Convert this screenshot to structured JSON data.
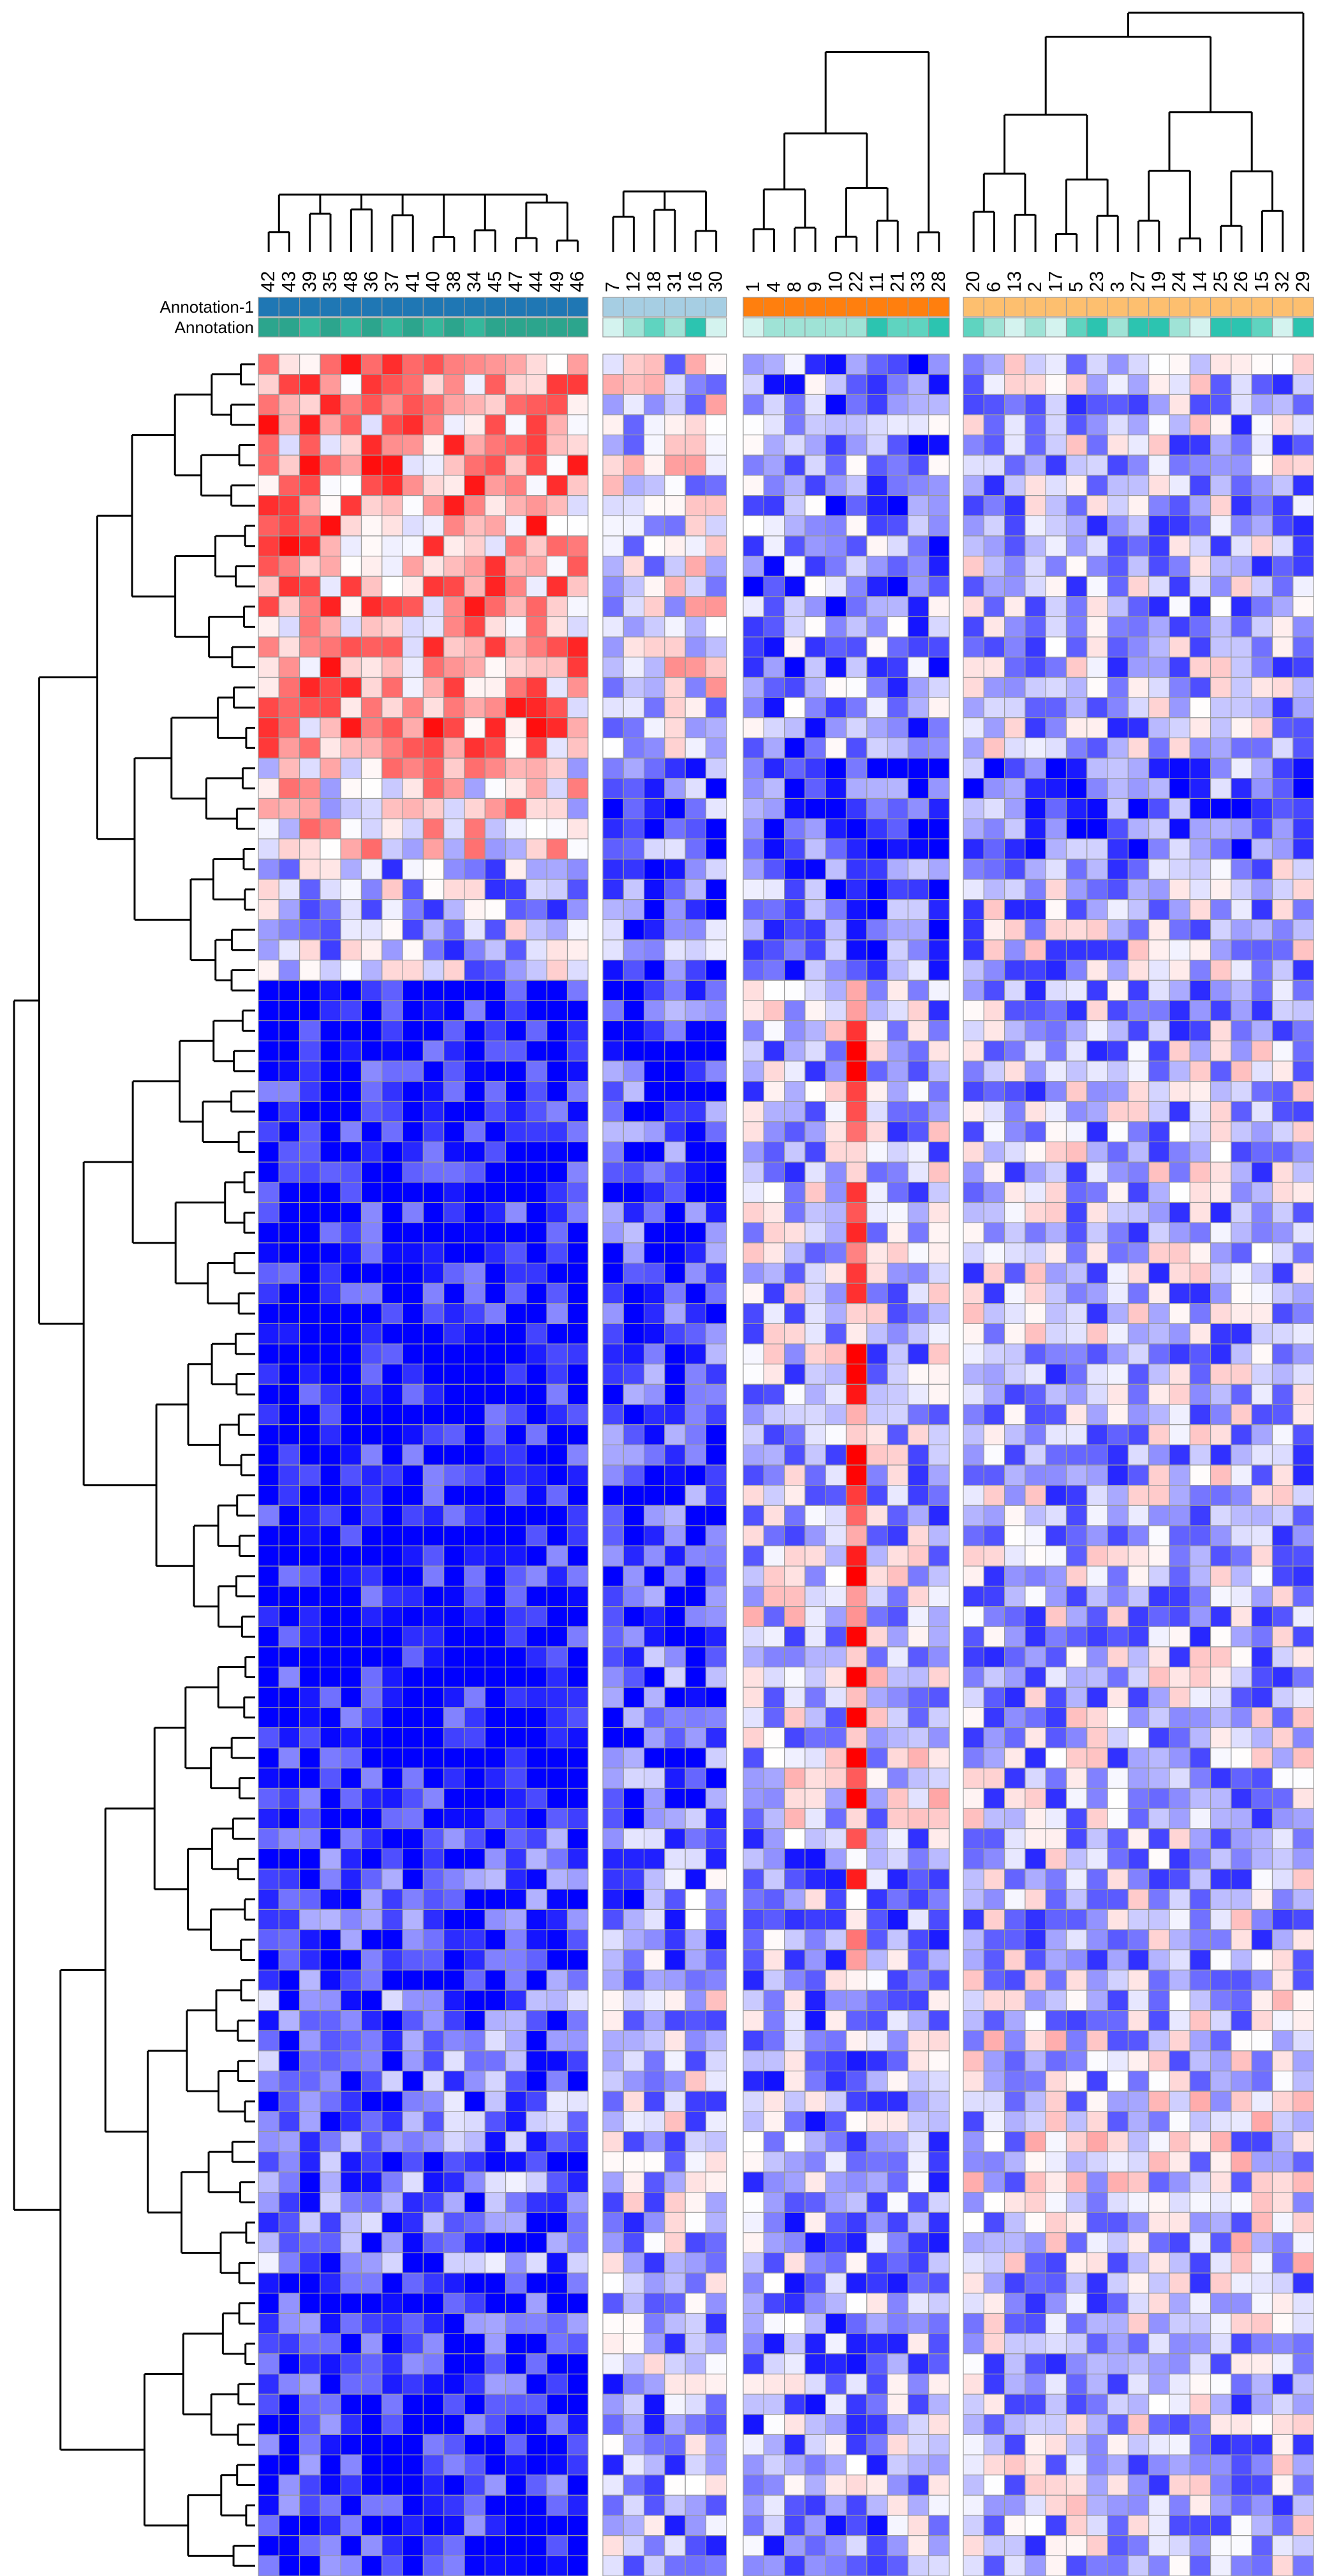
{
  "chart_data": {
    "type": "heatmap",
    "title": "",
    "annotation_rows": [
      "Annotation-1",
      "Annotation"
    ],
    "column_groups": [
      {
        "columns": [
          "42",
          "43",
          "39",
          "35",
          "48",
          "36",
          "37",
          "41",
          "40",
          "38",
          "34",
          "45",
          "47",
          "44",
          "49",
          "46"
        ],
        "annotation_1_colors": [
          "#1f77b4",
          "#1f77b4",
          "#1f77b4",
          "#1f77b4",
          "#1f77b4",
          "#1f77b4",
          "#1f77b4",
          "#1f77b4",
          "#1f77b4",
          "#1f77b4",
          "#1f77b4",
          "#1f77b4",
          "#1f77b4",
          "#1f77b4",
          "#1f77b4",
          "#1f77b4"
        ],
        "annotation_colors": [
          "#2ca58d",
          "#2ca58d",
          "#35b89c",
          "#2ca58d",
          "#35b89c",
          "#2ca58d",
          "#35b89c",
          "#2ca58d",
          "#35b89c",
          "#2ca58d",
          "#35b89c",
          "#2ca58d",
          "#2ca58d",
          "#2ca58d",
          "#2ca58d",
          "#2ca58d"
        ]
      },
      {
        "columns": [
          "7",
          "12",
          "18",
          "31",
          "16",
          "30"
        ],
        "annotation_1_colors": [
          "#a6cee3",
          "#a6cee3",
          "#a6cee3",
          "#a6cee3",
          "#a6cee3",
          "#a6cee3"
        ],
        "annotation_colors": [
          "#d4f3ef",
          "#9fe3d6",
          "#5fd4c0",
          "#9fe3d6",
          "#2cc4b0",
          "#d4f3ef"
        ]
      },
      {
        "columns": [
          "1",
          "4",
          "8",
          "9",
          "10",
          "22",
          "11",
          "21",
          "33",
          "28"
        ],
        "annotation_1_colors": [
          "#ff7f0e",
          "#ff7f0e",
          "#ff7f0e",
          "#ff7f0e",
          "#ff7f0e",
          "#ff7f0e",
          "#ff7f0e",
          "#ff7f0e",
          "#ff7f0e",
          "#ff7f0e"
        ],
        "annotation_colors": [
          "#d4f3ef",
          "#9fe3d6",
          "#9fe3d6",
          "#9fe3d6",
          "#9fe3d6",
          "#9fe3d6",
          "#2cc4b0",
          "#5fd4c0",
          "#5fd4c0",
          "#2cc4b0"
        ]
      },
      {
        "columns": [
          "20",
          "6",
          "13",
          "2",
          "17",
          "5",
          "23",
          "3",
          "27",
          "19",
          "24",
          "14",
          "25",
          "26",
          "15",
          "32",
          "29"
        ],
        "annotation_1_colors": [
          "#fdbf6f",
          "#fdbf6f",
          "#fdbf6f",
          "#fdbf6f",
          "#fdbf6f",
          "#fdbf6f",
          "#fdbf6f",
          "#fdbf6f",
          "#fdbf6f",
          "#fdbf6f",
          "#fdbf6f",
          "#fdbf6f",
          "#fdbf6f",
          "#fdbf6f",
          "#fdbf6f",
          "#fdbf6f",
          "#fdbf6f"
        ],
        "annotation_colors": [
          "#5fd4c0",
          "#9fe3d6",
          "#d4f3ef",
          "#9fe3d6",
          "#d4f3ef",
          "#5fd4c0",
          "#2cc4b0",
          "#9fe3d6",
          "#2cc4b0",
          "#2cc4b0",
          "#9fe3d6",
          "#d4f3ef",
          "#2cc4b0",
          "#2cc4b0",
          "#5fd4c0",
          "#d4f3ef",
          "#2cc4b0"
        ]
      }
    ],
    "row_count": 110,
    "color_scale": {
      "low": "#0000ff",
      "mid": "#ffffff",
      "high": "#ff0000"
    },
    "row_blocks": [
      {
        "rows": 20,
        "means": [
          0.4,
          -0.1,
          -0.5,
          -0.3
        ]
      },
      {
        "rows": 5,
        "means": [
          0.1,
          -0.6,
          -0.8,
          -0.6
        ]
      },
      {
        "rows": 6,
        "means": [
          -0.3,
          -0.6,
          -0.6,
          -0.3
        ]
      },
      {
        "rows": 30,
        "means": [
          -1.0,
          -0.8,
          -0.3,
          -0.3
        ]
      },
      {
        "rows": 12,
        "means": [
          -1.0,
          -0.7,
          -0.2,
          -0.3
        ]
      },
      {
        "rows": 8,
        "means": [
          -0.8,
          -0.5,
          -0.4,
          -0.3
        ]
      },
      {
        "rows": 14,
        "means": [
          -0.6,
          -0.3,
          -0.4,
          -0.2
        ]
      },
      {
        "rows": 15,
        "means": [
          -0.9,
          -0.4,
          -0.4,
          -0.3
        ]
      }
    ],
    "highlight_columns": {
      "group": 2,
      "column": "22",
      "boost": 0.9
    }
  }
}
